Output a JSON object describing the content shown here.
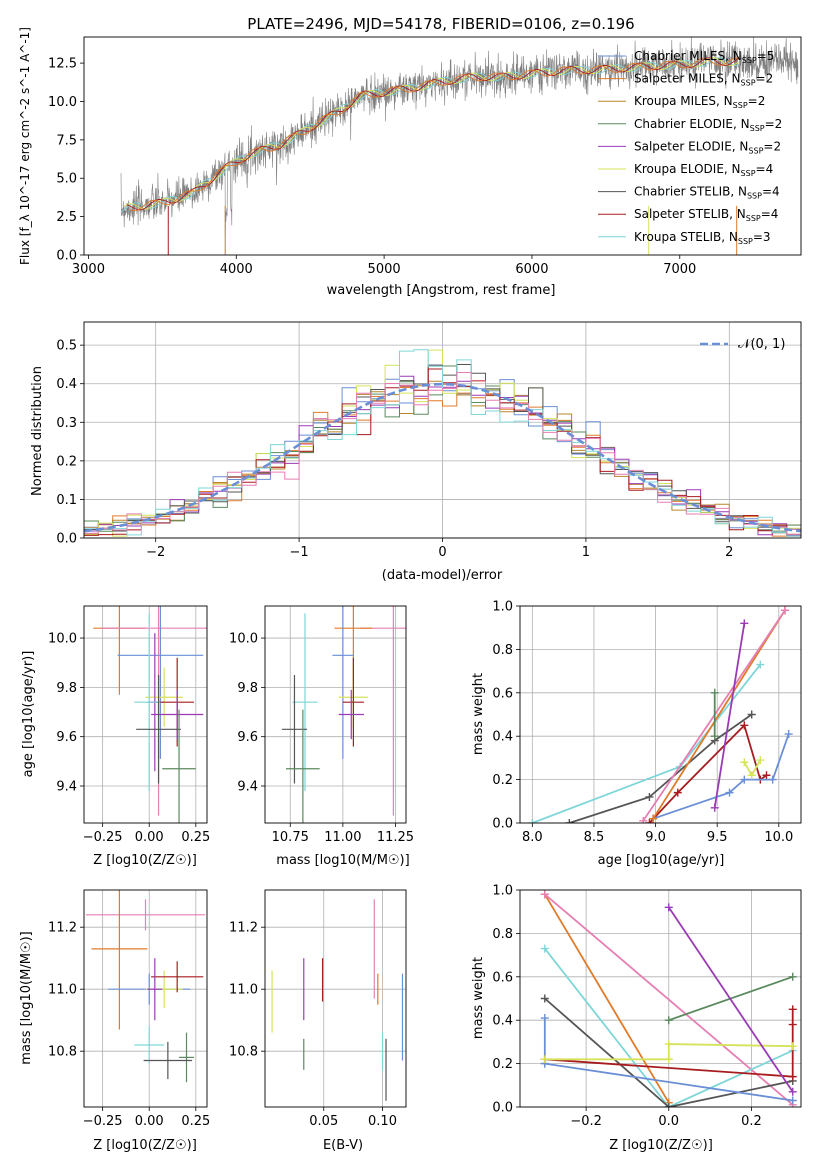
{
  "colors": {
    "Chabrier MILES": "#6a8fd6",
    "Salpeter MILES": "#e07b2a",
    "Kroupa MILES": "#b8862b",
    "Chabrier ELODIE": "#5b8a5f",
    "Salpeter ELODIE": "#9a3bb5",
    "Kroupa ELODIE": "#d6e35a",
    "Chabrier STELIB": "#555555",
    "Salpeter STELIB": "#a81c20",
    "Kroupa STELIB": "#7fd6d8",
    "pink": "#e67fb3",
    "data": "#7f7f7f"
  },
  "chart_data": [
    {
      "id": "spectrum",
      "type": "line",
      "title": "PLATE=2496, MJD=54178, FIBERID=0106, z=0.196",
      "xlabel": "wavelength [Angstrom, rest frame]",
      "ylabel": "Flux [f_λ 10^-17 erg cm^-2 s^-1 A^-1]",
      "xlim": [
        2970,
        7820
      ],
      "ylim": [
        0,
        14.2
      ],
      "xticks": [
        "3000",
        "4000",
        "5000",
        "6000",
        "7000"
      ],
      "yticks": [
        "0.0",
        "2.5",
        "5.0",
        "7.5",
        "10.0",
        "12.5"
      ],
      "legend_position": "upper right",
      "legend": [
        {
          "name": "Chabrier MILES",
          "nssp": "5"
        },
        {
          "name": "Salpeter MILES",
          "nssp": "2"
        },
        {
          "name": "Kroupa MILES",
          "nssp": "2"
        },
        {
          "name": "Chabrier ELODIE",
          "nssp": "2"
        },
        {
          "name": "Salpeter ELODIE",
          "nssp": "2"
        },
        {
          "name": "Kroupa ELODIE",
          "nssp": "4"
        },
        {
          "name": "Chabrier STELIB",
          "nssp": "4"
        },
        {
          "name": "Salpeter STELIB",
          "nssp": "4"
        },
        {
          "name": "Kroupa STELIB",
          "nssp": "3"
        }
      ],
      "continuum": [
        [
          3220,
          3.0
        ],
        [
          3500,
          3.4
        ],
        [
          3700,
          4.0
        ],
        [
          3950,
          5.8
        ],
        [
          4100,
          6.6
        ],
        [
          4300,
          7.2
        ],
        [
          4500,
          8.3
        ],
        [
          4700,
          9.4
        ],
        [
          4850,
          10.4
        ],
        [
          5000,
          10.6
        ],
        [
          5200,
          10.9
        ],
        [
          5400,
          11.3
        ],
        [
          5600,
          11.6
        ],
        [
          5800,
          11.6
        ],
        [
          6000,
          11.8
        ],
        [
          6200,
          12.0
        ],
        [
          6500,
          12.1
        ],
        [
          6800,
          12.3
        ],
        [
          7000,
          12.4
        ],
        [
          7200,
          12.6
        ],
        [
          7500,
          12.6
        ],
        [
          7800,
          12.6
        ]
      ]
    },
    {
      "id": "residuals",
      "type": "histogram",
      "xlabel": "(data-model)/error",
      "ylabel": "Normed distribution",
      "xlim": [
        -2.5,
        2.5
      ],
      "ylim": [
        0,
        0.56
      ],
      "xticks": [
        "−2",
        "−1",
        "0",
        "1",
        "2"
      ],
      "yticks": [
        "0.0",
        "0.1",
        "0.2",
        "0.3",
        "0.4",
        "0.5"
      ],
      "legend_position": "upper right",
      "reference_label": "𝒩(0, 1)",
      "bin_width": 0.1
    },
    {
      "id": "age_vs_Z",
      "type": "errorbar",
      "xlabel": "Z [log10(Z/Z☉)]",
      "ylabel": "age  [log10(age/yr)]",
      "xlim": [
        -0.35,
        0.31
      ],
      "ylim": [
        9.25,
        10.13
      ],
      "xticks": [
        "−0.25",
        "0.00",
        "0.25"
      ],
      "yticks": [
        "9.4",
        "9.6",
        "9.8",
        "10.0"
      ],
      "points": [
        {
          "series": "Salpeter MILES",
          "x": -0.16,
          "xerr": 0.14,
          "y": 10.04,
          "yerr": 0.27
        },
        {
          "series": "pink",
          "x": 0.05,
          "xerr": 0.31,
          "y": 10.04,
          "yerr": 0.76
        },
        {
          "series": "Chabrier MILES",
          "x": 0.06,
          "xerr": 0.23,
          "y": 9.93,
          "yerr": 0.42
        },
        {
          "series": "Kroupa ELODIE",
          "x": 0.08,
          "xerr": 0.1,
          "y": 9.76,
          "yerr": 0.12
        },
        {
          "series": "Salpeter ELODIE",
          "x": 0.03,
          "xerr": 0.04,
          "y": 9.74,
          "yerr": 0.28
        },
        {
          "series": "Kroupa STELIB",
          "x": 0.0,
          "xerr": 0.08,
          "y": 9.74,
          "yerr": 0.36
        },
        {
          "series": "Salpeter STELIB",
          "x": 0.15,
          "xerr": 0.09,
          "y": 9.74,
          "yerr": 0.18
        },
        {
          "series": "Salpeter ELODIE",
          "x": 0.15,
          "xerr": 0.14,
          "y": 9.69,
          "yerr": 0.1
        },
        {
          "series": "Chabrier STELIB",
          "x": 0.05,
          "xerr": 0.12,
          "y": 9.63,
          "yerr": 0.22
        },
        {
          "series": "Chabrier ELODIE",
          "x": 0.16,
          "xerr": 0.09,
          "y": 9.47,
          "yerr": 0.24
        }
      ]
    },
    {
      "id": "age_vs_mass",
      "type": "errorbar",
      "xlabel": "mass [log10(M/M☉)]",
      "ylabel": "",
      "xlim": [
        10.63,
        11.3
      ],
      "ylim": [
        9.25,
        10.13
      ],
      "xticks": [
        "10.75",
        "11.00",
        "11.25"
      ],
      "yticks": [
        "9.4",
        "9.6",
        "9.8",
        "10.0"
      ],
      "points": [
        {
          "series": "pink",
          "x": 11.24,
          "xerr": 0.16,
          "y": 10.04,
          "yerr": 0.76
        },
        {
          "series": "Salpeter MILES",
          "x": 11.05,
          "xerr": 0.09,
          "y": 10.04,
          "yerr": 0.27
        },
        {
          "series": "Chabrier MILES",
          "x": 11.0,
          "xerr": 0.05,
          "y": 9.93,
          "yerr": 0.42
        },
        {
          "series": "Kroupa ELODIE",
          "x": 11.05,
          "xerr": 0.07,
          "y": 9.76,
          "yerr": 0.12
        },
        {
          "series": "Kroupa STELIB",
          "x": 10.82,
          "xerr": 0.06,
          "y": 9.74,
          "yerr": 0.36
        },
        {
          "series": "Salpeter STELIB",
          "x": 11.05,
          "xerr": 0.05,
          "y": 9.74,
          "yerr": 0.18
        },
        {
          "series": "Salpeter ELODIE",
          "x": 11.04,
          "xerr": 0.06,
          "y": 9.69,
          "yerr": 0.1
        },
        {
          "series": "Chabrier STELIB",
          "x": 10.77,
          "xerr": 0.06,
          "y": 9.63,
          "yerr": 0.22
        },
        {
          "series": "Chabrier ELODIE",
          "x": 10.81,
          "xerr": 0.08,
          "y": 9.47,
          "yerr": 0.24
        }
      ]
    },
    {
      "id": "weight_vs_age",
      "type": "line",
      "xlabel": "age  [log10(age/yr)]",
      "ylabel": "mass weight",
      "xlim": [
        7.9,
        10.18
      ],
      "ylim": [
        0,
        1
      ],
      "xticks": [
        "8.0",
        "8.5",
        "9.0",
        "9.5",
        "10.0"
      ],
      "yticks": [
        "0.0",
        "0.2",
        "0.4",
        "0.6",
        "0.8",
        "1.0"
      ],
      "series": [
        {
          "name": "Kroupa STELIB",
          "x": [
            8.0,
            9.2,
            9.85
          ],
          "y": [
            0.0,
            0.26,
            0.73
          ]
        },
        {
          "name": "Chabrier STELIB",
          "x": [
            8.3,
            8.95,
            9.48,
            9.78
          ],
          "y": [
            0.0,
            0.12,
            0.38,
            0.5
          ]
        },
        {
          "name": "Salpeter STELIB",
          "x": [
            8.95,
            9.18,
            9.72,
            9.85,
            9.9
          ],
          "y": [
            0.0,
            0.14,
            0.45,
            0.2,
            0.22
          ]
        },
        {
          "name": "Chabrier MILES",
          "x": [
            8.98,
            9.6,
            9.72,
            9.95,
            10.08
          ],
          "y": [
            0.02,
            0.14,
            0.2,
            0.2,
            0.41
          ]
        },
        {
          "name": "Salpeter MILES",
          "x": [
            8.98,
            10.05
          ],
          "y": [
            0.02,
            0.98
          ]
        },
        {
          "name": "pink",
          "x": [
            8.9,
            10.05
          ],
          "y": [
            0.01,
            0.98
          ]
        },
        {
          "name": "Salpeter ELODIE",
          "x": [
            9.48,
            9.72
          ],
          "y": [
            0.07,
            0.92
          ]
        },
        {
          "name": "Chabrier ELODIE",
          "x": [
            9.48,
            9.48
          ],
          "y": [
            0.4,
            0.6
          ]
        },
        {
          "name": "Kroupa ELODIE",
          "x": [
            9.72,
            9.78,
            9.85
          ],
          "y": [
            0.28,
            0.22,
            0.29
          ]
        }
      ]
    },
    {
      "id": "mass_vs_Z",
      "type": "errorbar",
      "xlabel": "Z [log10(Z/Z☉)]",
      "ylabel": "mass [log10(M/M☉)]",
      "xlim": [
        -0.35,
        0.31
      ],
      "ylim": [
        10.62,
        11.32
      ],
      "xticks": [
        "−0.25",
        "0.00",
        "0.25"
      ],
      "yticks": [
        "10.8",
        "11.0",
        "11.2"
      ],
      "points": [
        {
          "series": "pink",
          "x": -0.02,
          "xerr": 0.32,
          "y": 11.24,
          "yerr": 0.05
        },
        {
          "series": "Salpeter MILES",
          "x": -0.16,
          "xerr": 0.15,
          "y": 11.13,
          "yerr": 0.26
        },
        {
          "series": "Chabrier MILES",
          "x": 0.0,
          "xerr": 0.22,
          "y": 11.0,
          "yerr": 0.05
        },
        {
          "series": "Kroupa ELODIE",
          "x": 0.08,
          "xerr": 0.1,
          "y": 11.0,
          "yerr": 0.06
        },
        {
          "series": "Salpeter STELIB",
          "x": 0.15,
          "xerr": 0.14,
          "y": 11.04,
          "yerr": 0.05
        },
        {
          "series": "Salpeter ELODIE",
          "x": 0.03,
          "xerr": 0.04,
          "y": 11.0,
          "yerr": 0.1
        },
        {
          "series": "Kroupa STELIB",
          "x": 0.0,
          "xerr": 0.08,
          "y": 10.82,
          "yerr": 0.06
        },
        {
          "series": "Chabrier ELODIE",
          "x": 0.2,
          "xerr": 0.04,
          "y": 10.78,
          "yerr": 0.08
        },
        {
          "series": "Chabrier STELIB",
          "x": 0.1,
          "xerr": 0.13,
          "y": 10.77,
          "yerr": 0.06
        }
      ]
    },
    {
      "id": "mass_vs_EBV",
      "type": "errorbar",
      "xlabel": "E(B-V)",
      "ylabel": "",
      "xlim": [
        0.0,
        0.12
      ],
      "ylim": [
        10.62,
        11.32
      ],
      "xticks": [
        "0.05",
        "0.10"
      ],
      "yticks": [
        "10.8",
        "11.0",
        "11.2"
      ],
      "points": [
        {
          "series": "Kroupa ELODIE",
          "x": 0.006,
          "yerr": 0.1,
          "y": 10.96
        },
        {
          "series": "Salpeter ELODIE",
          "x": 0.033,
          "yerr": 0.1,
          "y": 11.0
        },
        {
          "series": "Chabrier ELODIE",
          "x": 0.033,
          "yerr": 0.05,
          "y": 10.79
        },
        {
          "series": "Salpeter STELIB",
          "x": 0.049,
          "yerr": 0.07,
          "y": 11.03
        },
        {
          "series": "pink",
          "x": 0.093,
          "yerr": 0.16,
          "y": 11.13
        },
        {
          "series": "Salpeter MILES",
          "x": 0.096,
          "yerr": 0.05,
          "y": 11.0
        },
        {
          "series": "Kroupa STELIB",
          "x": 0.1,
          "yerr": 0.06,
          "y": 10.8
        },
        {
          "series": "Chabrier STELIB",
          "x": 0.103,
          "yerr": 0.1,
          "y": 10.74
        },
        {
          "series": "Chabrier MILES",
          "x": 0.117,
          "yerr": 0.14,
          "y": 10.91
        }
      ]
    },
    {
      "id": "weight_vs_Z",
      "type": "line",
      "xlabel": "Z [log10(Z/Z☉)]",
      "ylabel": "mass weight",
      "xlim": [
        -0.36,
        0.32
      ],
      "ylim": [
        0,
        1
      ],
      "xticks": [
        "−0.2",
        "0.0",
        "0.2"
      ],
      "yticks": [
        "0.0",
        "0.2",
        "0.4",
        "0.6",
        "0.8",
        "1.0"
      ],
      "series": [
        {
          "name": "Salpeter MILES",
          "x": [
            -0.3,
            0.0
          ],
          "y": [
            0.98,
            0.02
          ]
        },
        {
          "name": "pink",
          "x": [
            -0.3,
            0.3
          ],
          "y": [
            0.98,
            0.01
          ]
        },
        {
          "name": "Kroupa STELIB",
          "x": [
            -0.3,
            0.0,
            0.3
          ],
          "y": [
            0.73,
            0.0,
            0.26
          ]
        },
        {
          "name": "Chabrier STELIB",
          "x": [
            -0.3,
            0.0,
            0.3
          ],
          "y": [
            0.5,
            0.0,
            0.12
          ]
        },
        {
          "name": "Chabrier MILES",
          "x": [
            -0.3,
            -0.3,
            -0.3,
            0.3
          ],
          "y": [
            0.41,
            0.2,
            0.2,
            0.03
          ]
        },
        {
          "name": "Salpeter STELIB",
          "x": [
            -0.3,
            -0.3,
            0.3,
            0.3,
            0.3
          ],
          "y": [
            0.22,
            0.22,
            0.14,
            0.45,
            0.38
          ]
        },
        {
          "name": "Kroupa ELODIE",
          "x": [
            -0.3,
            0.0,
            0.0,
            0.3
          ],
          "y": [
            0.22,
            0.22,
            0.29,
            0.28
          ]
        },
        {
          "name": "Chabrier ELODIE",
          "x": [
            0.0,
            0.3
          ],
          "y": [
            0.4,
            0.6
          ]
        },
        {
          "name": "Salpeter ELODIE",
          "x": [
            0.0,
            0.3
          ],
          "y": [
            0.92,
            0.07
          ]
        }
      ]
    }
  ]
}
